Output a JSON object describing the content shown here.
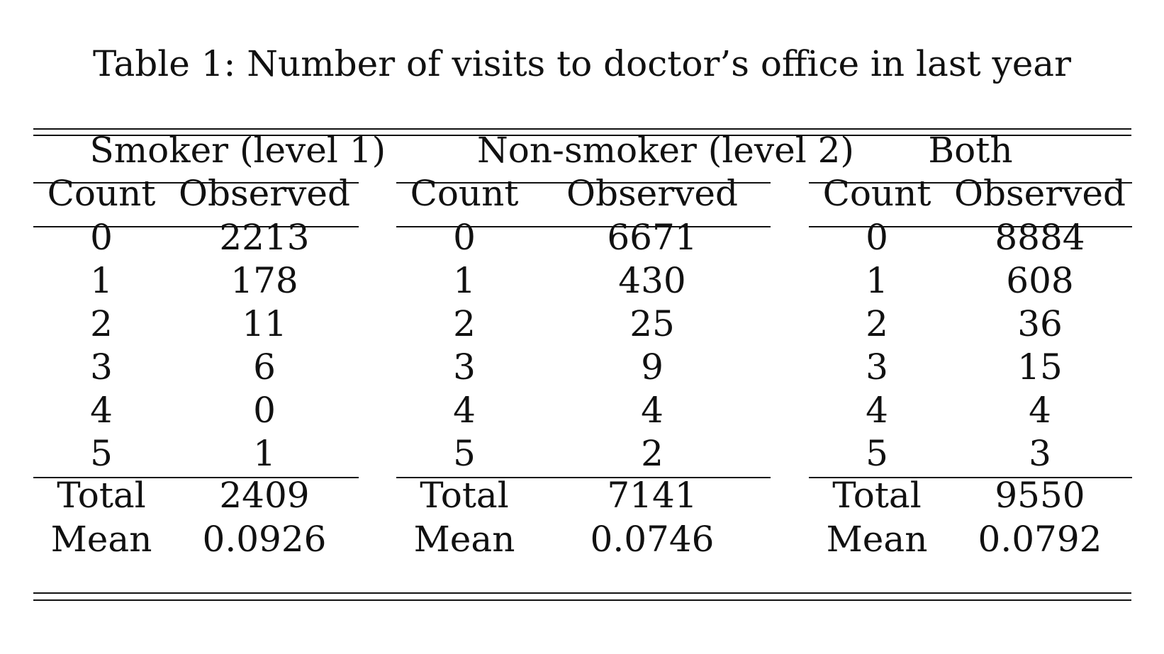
{
  "caption": "Table 1: Number of visits to doctor’s office in last year",
  "panels": [
    {
      "title": "Smoker (level 1)",
      "col_headers": [
        "Count",
        "Observed"
      ],
      "rows": [
        [
          "0",
          "2213"
        ],
        [
          "1",
          "178"
        ],
        [
          "2",
          "11"
        ],
        [
          "3",
          "6"
        ],
        [
          "4",
          "0"
        ],
        [
          "5",
          "1"
        ]
      ],
      "summary": [
        [
          "Total",
          "2409"
        ],
        [
          "Mean",
          "0.0926"
        ]
      ]
    },
    {
      "title": "Non-smoker (level 2)",
      "col_headers": [
        "Count",
        "Observed"
      ],
      "rows": [
        [
          "0",
          "6671"
        ],
        [
          "1",
          "430"
        ],
        [
          "2",
          "25"
        ],
        [
          "3",
          "9"
        ],
        [
          "4",
          "4"
        ],
        [
          "5",
          "2"
        ]
      ],
      "summary": [
        [
          "Total",
          "7141"
        ],
        [
          "Mean",
          "0.0746"
        ]
      ]
    },
    {
      "title": "Both",
      "col_headers": [
        "Count",
        "Observed"
      ],
      "rows": [
        [
          "0",
          "8884"
        ],
        [
          "1",
          "608"
        ],
        [
          "2",
          "36"
        ],
        [
          "3",
          "15"
        ],
        [
          "4",
          "4"
        ],
        [
          "5",
          "3"
        ]
      ],
      "summary": [
        [
          "Total",
          "9550"
        ],
        [
          "Mean",
          "0.0792"
        ]
      ]
    }
  ]
}
